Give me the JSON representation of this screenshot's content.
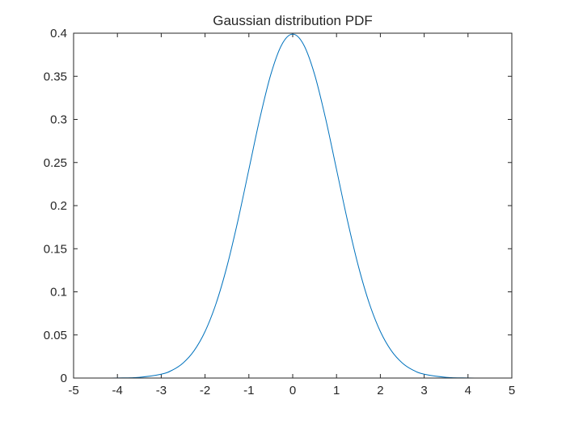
{
  "chart_data": {
    "type": "line",
    "title": "Gaussian distribution PDF",
    "xlabel": "",
    "ylabel": "",
    "xlim": [
      -5,
      5
    ],
    "ylim": [
      0,
      0.4
    ],
    "x_ticks": [
      -5,
      -4,
      -3,
      -2,
      -1,
      0,
      1,
      2,
      3,
      4,
      5
    ],
    "x_tick_labels": [
      "-5",
      "-4",
      "-3",
      "-2",
      "-1",
      "0",
      "1",
      "2",
      "3",
      "4",
      "5"
    ],
    "y_ticks": [
      0,
      0.05,
      0.1,
      0.15,
      0.2,
      0.25,
      0.3,
      0.35,
      0.4
    ],
    "y_tick_labels": [
      "0",
      "0.05",
      "0.1",
      "0.15",
      "0.2",
      "0.25",
      "0.3",
      "0.35",
      "0.4"
    ],
    "grid": false,
    "box": true,
    "series": [
      {
        "color": "#0072bd",
        "x": [
          -5,
          -4.5,
          -4,
          -3.5,
          -3,
          -2.75,
          -2.5,
          -2.25,
          -2,
          -1.75,
          -1.5,
          -1.25,
          -1,
          -0.75,
          -0.5,
          -0.25,
          0,
          0.25,
          0.5,
          0.75,
          1,
          1.25,
          1.5,
          1.75,
          2,
          2.25,
          2.5,
          2.75,
          3,
          3.5,
          4,
          4.5,
          5
        ],
        "y": [
          1.5e-06,
          1.6e-05,
          0.000134,
          0.000873,
          0.004432,
          0.009094,
          0.017528,
          0.03174,
          0.053991,
          0.086277,
          0.129518,
          0.182649,
          0.241971,
          0.301137,
          0.352065,
          0.386668,
          0.398942,
          0.386668,
          0.352065,
          0.301137,
          0.241971,
          0.182649,
          0.129518,
          0.086277,
          0.053991,
          0.03174,
          0.017528,
          0.009094,
          0.004432,
          0.000873,
          0.000134,
          1.6e-05,
          1.5e-06
        ]
      }
    ]
  }
}
